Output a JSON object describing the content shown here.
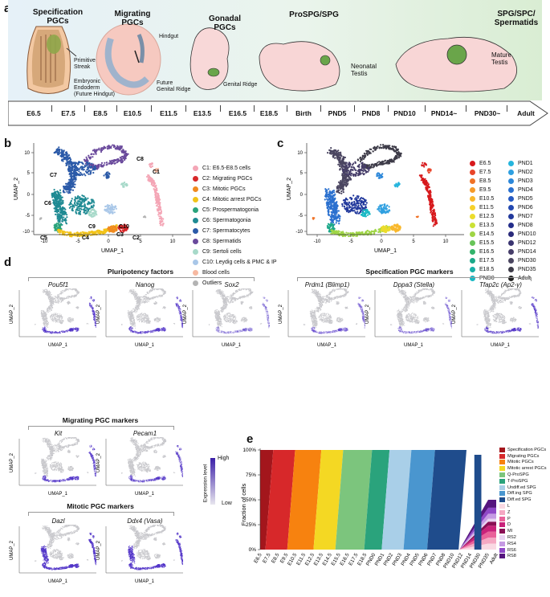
{
  "panel_labels": {
    "a": "a",
    "b": "b",
    "c": "c",
    "d": "d",
    "e": "e"
  },
  "panel_a": {
    "stages": [
      {
        "title": "Specification\nPGCs"
      },
      {
        "title": "Migrating\nPGCs"
      },
      {
        "title": "Gonadal\nPGCs"
      },
      {
        "title": "ProSPG/SPG"
      },
      {
        "title": "SPG/SPC/\nSpermatids"
      }
    ],
    "annotations": {
      "primitive_streak": "Primitive\nStreak",
      "embryonic_endoderm": "Embryonic\nEndoderm\n(Future Hindgut)",
      "hindgut": "Hindgut",
      "future_genital_ridge": "Future\nGenital Ridge",
      "genital_ridge": "Genital Ridge",
      "neonatal_testis": "Neonatal\nTestis",
      "mature_testis": "Mature\nTestis"
    },
    "timeline": [
      "E6.5",
      "E7.5",
      "E8.5",
      "E10.5",
      "E11.5",
      "E13.5",
      "E16.5",
      "E18.5",
      "Birth",
      "PND5",
      "PND8",
      "PND10",
      "PND14~",
      "PND30~",
      "Adult"
    ]
  },
  "panel_b": {
    "xlabel": "UMAP_1",
    "ylabel": "UMAP_2",
    "xticks": [
      "-10",
      "-5",
      "0",
      "5",
      "10"
    ],
    "yticks": [
      "10",
      "5",
      "0",
      "-5",
      "-10"
    ],
    "cluster_labels": [
      "C1",
      "C2",
      "C3",
      "C4",
      "C5",
      "C6",
      "C7",
      "C8",
      "C9",
      "C10"
    ],
    "legend": [
      {
        "label": "C1: E6.5-E8.5 cells",
        "color": "#f4a6b6"
      },
      {
        "label": "C2: Migrating PGCs",
        "color": "#d7282a"
      },
      {
        "label": "C3: Mitotic PGCs",
        "color": "#f08a1f"
      },
      {
        "label": "C4: Mitotic arrest PGCs",
        "color": "#f2c318"
      },
      {
        "label": "C5: Prospermatogonia",
        "color": "#2aa37c"
      },
      {
        "label": "C6: Spermatogonia",
        "color": "#1f8a93"
      },
      {
        "label": "C7: Spermatocytes",
        "color": "#2b5aa8"
      },
      {
        "label": "C8: Spermatids",
        "color": "#6a4a9c"
      },
      {
        "label": "C9: Sertoli cells",
        "color": "#a7d9c9"
      },
      {
        "label": "C10: Leydig cells & PMC & IP",
        "color": "#a9c7e8"
      },
      {
        "label": "Blood cells",
        "color": "#f7b9a1"
      },
      {
        "label": "Outliers",
        "color": "#b3b3b3"
      }
    ]
  },
  "panel_c": {
    "xlabel": "UMAP_1",
    "ylabel": "UMAP_2",
    "xticks": [
      "-10",
      "-5",
      "0",
      "5",
      "10"
    ],
    "yticks": [
      "10",
      "5",
      "0",
      "-5",
      "-10"
    ],
    "legend_left": [
      {
        "label": "E6.5",
        "color": "#d7191c"
      },
      {
        "label": "E7.5",
        "color": "#e9452a"
      },
      {
        "label": "E8.5",
        "color": "#f07226"
      },
      {
        "label": "E9.5",
        "color": "#f69b2a"
      },
      {
        "label": "E10.5",
        "color": "#f9b82c"
      },
      {
        "label": "E11.5",
        "color": "#f6d12b"
      },
      {
        "label": "E12.5",
        "color": "#ecdc2c"
      },
      {
        "label": "E13.5",
        "color": "#cbe136"
      },
      {
        "label": "E14.5",
        "color": "#9fd545"
      },
      {
        "label": "E15.5",
        "color": "#68c459"
      },
      {
        "label": "E16.5",
        "color": "#33b36b"
      },
      {
        "label": "E17.5",
        "color": "#1ca889"
      },
      {
        "label": "E18.5",
        "color": "#19b0a8"
      },
      {
        "label": "PND0",
        "color": "#19b9c4"
      }
    ],
    "legend_right": [
      {
        "label": "PND1",
        "color": "#26b5dd"
      },
      {
        "label": "PND2",
        "color": "#2e9fe0"
      },
      {
        "label": "PND3",
        "color": "#2c87d9"
      },
      {
        "label": "PND4",
        "color": "#2a70cf"
      },
      {
        "label": "PND5",
        "color": "#2659c2"
      },
      {
        "label": "PND6",
        "color": "#2348b0"
      },
      {
        "label": "PND7",
        "color": "#22399c"
      },
      {
        "label": "PND8",
        "color": "#232d8a"
      },
      {
        "label": "PND10",
        "color": "#2a2a7a"
      },
      {
        "label": "PND12",
        "color": "#3a3470"
      },
      {
        "label": "PND14",
        "color": "#463d69"
      },
      {
        "label": "PND30",
        "color": "#4a4560"
      },
      {
        "label": "PND35",
        "color": "#3d3b48"
      },
      {
        "label": "Adult",
        "color": "#222222"
      }
    ]
  },
  "panel_d": {
    "sections": {
      "pluripotency": "Pluripotency factors",
      "specification": "Specification PGC markers",
      "migrating": "Migrating PGC markers",
      "mitotic": "Mitotic PGC markers"
    },
    "genes": [
      "Pou5f1",
      "Nanog",
      "Sox2",
      "Prdm1 (Blimp1)",
      "Dppa3 (Stella)",
      "Tfap2c (Ap2-γ)",
      "Kit",
      "Pecam1",
      "Dazl",
      "Ddx4 (Vasa)"
    ],
    "xlabel": "UMAP_1",
    "ylabel": "UMAP_2",
    "colorbar": {
      "title": "Expression level",
      "high": "High",
      "low": "Low"
    }
  },
  "panel_e": {
    "ylabel": "Fraction of cells",
    "yticks": [
      "100%",
      "75%",
      "50%",
      "25%",
      "0%"
    ],
    "chart_data": {
      "type": "area",
      "x": [
        "E6.5",
        "E7.5",
        "E8.5",
        "E9.5",
        "E10.5",
        "E11.5",
        "E12.5",
        "E13.5",
        "E14.5",
        "E15.5",
        "E16.5",
        "E17.5",
        "E18.5",
        "PND0",
        "PND1",
        "PND2",
        "PND3",
        "PND4",
        "PND5",
        "PND6",
        "PND7",
        "PND8",
        "PND10",
        "PND12",
        "PND14",
        "PND30",
        "PND35",
        "Adult"
      ],
      "ylim": [
        0,
        100
      ],
      "ylabel": "Fraction of cells"
    },
    "legend": [
      {
        "label": "Specification PGCs",
        "color": "#a3161c"
      },
      {
        "label": "Migrating PGCs",
        "color": "#d7282a"
      },
      {
        "label": "Mitotic PGCs",
        "color": "#f7820f"
      },
      {
        "label": "Mitotic arrest PGCs",
        "color": "#f4d823"
      },
      {
        "label": "Q-ProSPG",
        "color": "#7cc57d"
      },
      {
        "label": "T-ProSPG",
        "color": "#2aa37c"
      },
      {
        "label": "Undiff.ed SPG",
        "color": "#a9cfe8"
      },
      {
        "label": "Diff.ing SPG",
        "color": "#4a96cf"
      },
      {
        "label": "Diff.ed SPG",
        "color": "#1f4c8c"
      },
      {
        "label": "L",
        "color": "#f9d9e3"
      },
      {
        "label": "Z",
        "color": "#f5a8c3"
      },
      {
        "label": "P",
        "color": "#e9629a"
      },
      {
        "label": "D",
        "color": "#c9227a"
      },
      {
        "label": "MI",
        "color": "#8a0f55"
      },
      {
        "label": "RS2",
        "color": "#e9d3f2"
      },
      {
        "label": "RS4",
        "color": "#c59ae3"
      },
      {
        "label": "RS6",
        "color": "#9048c8"
      },
      {
        "label": "RS8",
        "color": "#55157e"
      }
    ]
  }
}
